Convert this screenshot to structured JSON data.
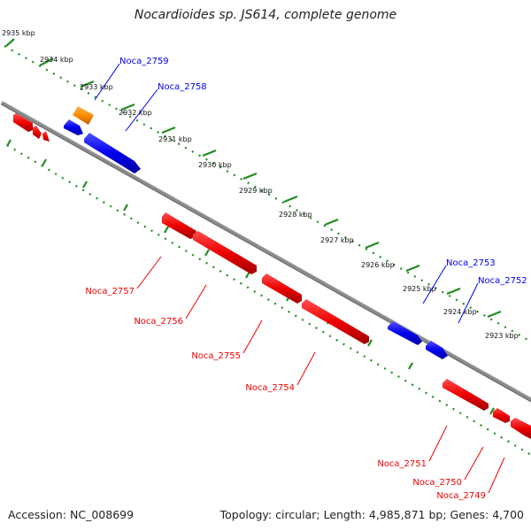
{
  "title": "Nocardioides sp. JS614, complete genome",
  "footer": {
    "accession": "Accession: NC_008699",
    "topology": "Topology: circular; Length: 4,985,871 bp; Genes: 4,700"
  },
  "colors": {
    "forward": "#0000ee",
    "reverse": "#ee0000",
    "other": "#ff8c00",
    "backbone": "#808080",
    "ticks": "#228b22"
  },
  "ruler": [
    {
      "label": "2935 kbp"
    },
    {
      "label": "2934 kbp"
    },
    {
      "label": "2933 kbp"
    },
    {
      "label": "2932 kbp"
    },
    {
      "label": "2931 kbp"
    },
    {
      "label": "2930 kbp"
    },
    {
      "label": "2929 kbp"
    },
    {
      "label": "2928 kbp"
    },
    {
      "label": "2927 kbp"
    },
    {
      "label": "2926 kbp"
    },
    {
      "label": "2925 kbp"
    },
    {
      "label": "2924 kbp"
    },
    {
      "label": "2923 kbp"
    }
  ],
  "genes": [
    {
      "name": "Noca_2759",
      "strand": "forward"
    },
    {
      "name": "Noca_2758",
      "strand": "forward"
    },
    {
      "name": "Noca_2757",
      "strand": "reverse"
    },
    {
      "name": "Noca_2756",
      "strand": "reverse"
    },
    {
      "name": "Noca_2755",
      "strand": "reverse"
    },
    {
      "name": "Noca_2754",
      "strand": "reverse"
    },
    {
      "name": "Noca_2753",
      "strand": "forward"
    },
    {
      "name": "Noca_2752",
      "strand": "forward"
    },
    {
      "name": "Noca_2751",
      "strand": "reverse"
    },
    {
      "name": "Noca_2750",
      "strand": "reverse"
    },
    {
      "name": "Noca_2749",
      "strand": "reverse"
    }
  ]
}
